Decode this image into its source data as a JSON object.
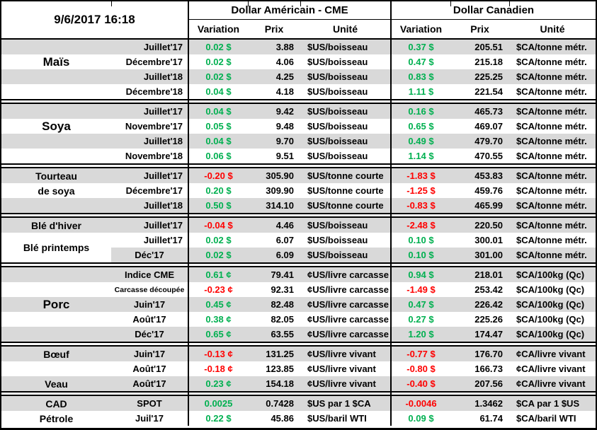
{
  "meta": {
    "timestamp": "9/6/2017 16:18"
  },
  "header": {
    "us_group": "Dollar Américain - CME",
    "ca_group": "Dollar Canadien",
    "cols": {
      "variation": "Variation",
      "prix": "Prix",
      "unite": "Unité"
    }
  },
  "colors": {
    "green": "#00B050",
    "red": "#FF0000",
    "stripe": "#D9D9D9"
  },
  "sections": [
    {
      "key": "mais",
      "rows": [
        {
          "label": "",
          "month": "Juillet'17",
          "month_align": "right",
          "us": {
            "var": "0.02 $",
            "dir": "up",
            "prix": "3.88",
            "unit": "$US/boisseau"
          },
          "ca": {
            "var": "0.37 $",
            "dir": "up",
            "prix": "205.51",
            "unit": "$CA/tonne métr."
          }
        },
        {
          "label": "Maïs",
          "label_size": "large",
          "month": "Décembre'17",
          "month_align": "right",
          "us": {
            "var": "0.02 $",
            "dir": "up",
            "prix": "4.06",
            "unit": "$US/boisseau"
          },
          "ca": {
            "var": "0.47 $",
            "dir": "up",
            "prix": "215.18",
            "unit": "$CA/tonne métr."
          }
        },
        {
          "label": "",
          "month": "Juillet'18",
          "month_align": "right",
          "us": {
            "var": "0.02 $",
            "dir": "up",
            "prix": "4.25",
            "unit": "$US/boisseau"
          },
          "ca": {
            "var": "0.83 $",
            "dir": "up",
            "prix": "225.25",
            "unit": "$CA/tonne métr."
          }
        },
        {
          "label": "",
          "month": "Décembre'18",
          "month_align": "right",
          "us": {
            "var": "0.04 $",
            "dir": "up",
            "prix": "4.18",
            "unit": "$US/boisseau"
          },
          "ca": {
            "var": "1.11 $",
            "dir": "up",
            "prix": "221.54",
            "unit": "$CA/tonne métr."
          }
        }
      ]
    },
    {
      "key": "soya",
      "rows": [
        {
          "label": "",
          "month": "Juillet'17",
          "month_align": "right",
          "us": {
            "var": "0.04 $",
            "dir": "up",
            "prix": "9.42",
            "unit": "$US/boisseau"
          },
          "ca": {
            "var": "0.16 $",
            "dir": "up",
            "prix": "465.73",
            "unit": "$CA/tonne métr."
          }
        },
        {
          "label": "Soya",
          "label_size": "large",
          "month": "Novembre'17",
          "month_align": "right",
          "us": {
            "var": "0.05 $",
            "dir": "up",
            "prix": "9.48",
            "unit": "$US/boisseau"
          },
          "ca": {
            "var": "0.65 $",
            "dir": "up",
            "prix": "469.07",
            "unit": "$CA/tonne métr."
          }
        },
        {
          "label": "",
          "month": "Juillet'18",
          "month_align": "right",
          "us": {
            "var": "0.04 $",
            "dir": "up",
            "prix": "9.70",
            "unit": "$US/boisseau"
          },
          "ca": {
            "var": "0.49 $",
            "dir": "up",
            "prix": "479.70",
            "unit": "$CA/tonne métr."
          }
        },
        {
          "label": "",
          "month": "Novembre'18",
          "month_align": "right",
          "us": {
            "var": "0.06 $",
            "dir": "up",
            "prix": "9.51",
            "unit": "$US/boisseau"
          },
          "ca": {
            "var": "1.14 $",
            "dir": "up",
            "prix": "470.55",
            "unit": "$CA/tonne métr."
          }
        }
      ]
    },
    {
      "key": "tourteau-de-soya",
      "rows": [
        {
          "label": "Tourteau",
          "month": "Juillet'17",
          "month_align": "right",
          "us": {
            "var": "-0.20 $",
            "dir": "down",
            "prix": "305.90",
            "unit": "$US/tonne courte"
          },
          "ca": {
            "var": "-1.83 $",
            "dir": "down",
            "prix": "453.83",
            "unit": "$CA/tonne métr."
          }
        },
        {
          "label": "de soya",
          "month": "Décembre'17",
          "month_align": "right",
          "us": {
            "var": "0.20 $",
            "dir": "up",
            "prix": "309.90",
            "unit": "$US/tonne courte"
          },
          "ca": {
            "var": "-1.25 $",
            "dir": "down",
            "prix": "459.76",
            "unit": "$CA/tonne métr."
          }
        },
        {
          "label": "",
          "month": "Juillet'18",
          "month_align": "right",
          "us": {
            "var": "0.50 $",
            "dir": "up",
            "prix": "314.10",
            "unit": "$US/tonne courte"
          },
          "ca": {
            "var": "-0.83 $",
            "dir": "down",
            "prix": "465.99",
            "unit": "$CA/tonne métr."
          }
        }
      ]
    },
    {
      "key": "ble",
      "rows": [
        {
          "label": "Blé d'hiver",
          "month": "Juillet'17",
          "month_align": "right",
          "us": {
            "var": "-0.04 $",
            "dir": "down",
            "prix": "4.46",
            "unit": "$US/boisseau"
          },
          "ca": {
            "var": "-2.48 $",
            "dir": "down",
            "prix": "220.50",
            "unit": "$CA/tonne métr."
          }
        },
        {
          "label": "Blé printemps",
          "label_offset": true,
          "month": "Juillet'17",
          "month_align": "right",
          "us": {
            "var": "0.02 $",
            "dir": "up",
            "prix": "6.07",
            "unit": "$US/boisseau"
          },
          "ca": {
            "var": "0.10 $",
            "dir": "up",
            "prix": "300.01",
            "unit": "$CA/tonne métr."
          }
        },
        {
          "label": "",
          "label_shade": "white",
          "month": "Déc'17",
          "month_align": "center",
          "us": {
            "var": "0.02 $",
            "dir": "up",
            "prix": "6.09",
            "unit": "$US/boisseau"
          },
          "ca": {
            "var": "0.10 $",
            "dir": "up",
            "prix": "301.00",
            "unit": "$CA/tonne métr."
          }
        }
      ]
    },
    {
      "key": "porc",
      "rows": [
        {
          "label": "",
          "month": "Indice CME",
          "month_align": "center",
          "us": {
            "var": "0.61 ¢",
            "dir": "up",
            "prix": "79.41",
            "unit": "¢US/livre carcasse"
          },
          "ca": {
            "var": "0.94 $",
            "dir": "up",
            "prix": "218.01",
            "unit": "$CA/100kg (Qc)"
          }
        },
        {
          "label": "",
          "month": "Carcasse découpée",
          "month_align": "center",
          "month_small": true,
          "us": {
            "var": "-0.23 ¢",
            "dir": "down",
            "prix": "92.31",
            "unit": "¢US/livre carcasse"
          },
          "ca": {
            "var": "-1.49 $",
            "dir": "down",
            "prix": "253.42",
            "unit": "$CA/100kg (Qc)"
          }
        },
        {
          "label": "Porc",
          "label_size": "large",
          "month": "Juin'17",
          "month_align": "center",
          "us": {
            "var": "0.45 ¢",
            "dir": "up",
            "prix": "82.48",
            "unit": "¢US/livre carcasse"
          },
          "ca": {
            "var": "0.47 $",
            "dir": "up",
            "prix": "226.42",
            "unit": "$CA/100kg (Qc)"
          }
        },
        {
          "label": "",
          "month": "Août'17",
          "month_align": "center",
          "us": {
            "var": "0.38 ¢",
            "dir": "up",
            "prix": "82.05",
            "unit": "¢US/livre carcasse"
          },
          "ca": {
            "var": "0.27 $",
            "dir": "up",
            "prix": "225.26",
            "unit": "$CA/100kg (Qc)"
          }
        },
        {
          "label": "",
          "month": "Déc'17",
          "month_align": "center",
          "us": {
            "var": "0.65 ¢",
            "dir": "up",
            "prix": "63.55",
            "unit": "¢US/livre carcasse"
          },
          "ca": {
            "var": "1.20 $",
            "dir": "up",
            "prix": "174.47",
            "unit": "$CA/100kg (Qc)"
          }
        }
      ]
    },
    {
      "key": "boeuf-veau",
      "rows": [
        {
          "label": "Bœuf",
          "month": "Juin'17",
          "month_align": "center",
          "us": {
            "var": "-0.13 ¢",
            "dir": "down",
            "prix": "131.25",
            "unit": "¢US/livre vivant"
          },
          "ca": {
            "var": "-0.77 $",
            "dir": "down",
            "prix": "176.70",
            "unit": "¢CA/livre vivant"
          }
        },
        {
          "label": "",
          "month": "Août'17",
          "month_align": "center",
          "us": {
            "var": "-0.18 ¢",
            "dir": "down",
            "prix": "123.85",
            "unit": "¢US/livre vivant"
          },
          "ca": {
            "var": "-0.80 $",
            "dir": "down",
            "prix": "166.73",
            "unit": "¢CA/livre vivant"
          }
        },
        {
          "label": "Veau",
          "month": "Août'17",
          "month_align": "center",
          "us": {
            "var": "0.23 ¢",
            "dir": "up",
            "prix": "154.18",
            "unit": "¢US/livre vivant"
          },
          "ca": {
            "var": "-0.40 $",
            "dir": "down",
            "prix": "207.56",
            "unit": "¢CA/livre vivant"
          }
        }
      ]
    },
    {
      "key": "cad-petrole",
      "rows": [
        {
          "label": "CAD",
          "month": "SPOT",
          "month_align": "center",
          "us": {
            "var": "0.0025",
            "dir": "up",
            "prix": "0.7428",
            "unit": "$US par 1 $CA"
          },
          "ca": {
            "var": "-0.0046",
            "dir": "down",
            "prix": "1.3462",
            "unit": "$CA par 1 $US"
          }
        },
        {
          "label": "Pétrole",
          "month": "Juil'17",
          "month_align": "center",
          "us": {
            "var": "0.22 $",
            "dir": "up",
            "prix": "45.86",
            "unit": "$US/baril WTI"
          },
          "ca": {
            "var": "0.09 $",
            "dir": "up",
            "prix": "61.74",
            "unit": "$CA/baril WTI"
          }
        }
      ]
    }
  ]
}
